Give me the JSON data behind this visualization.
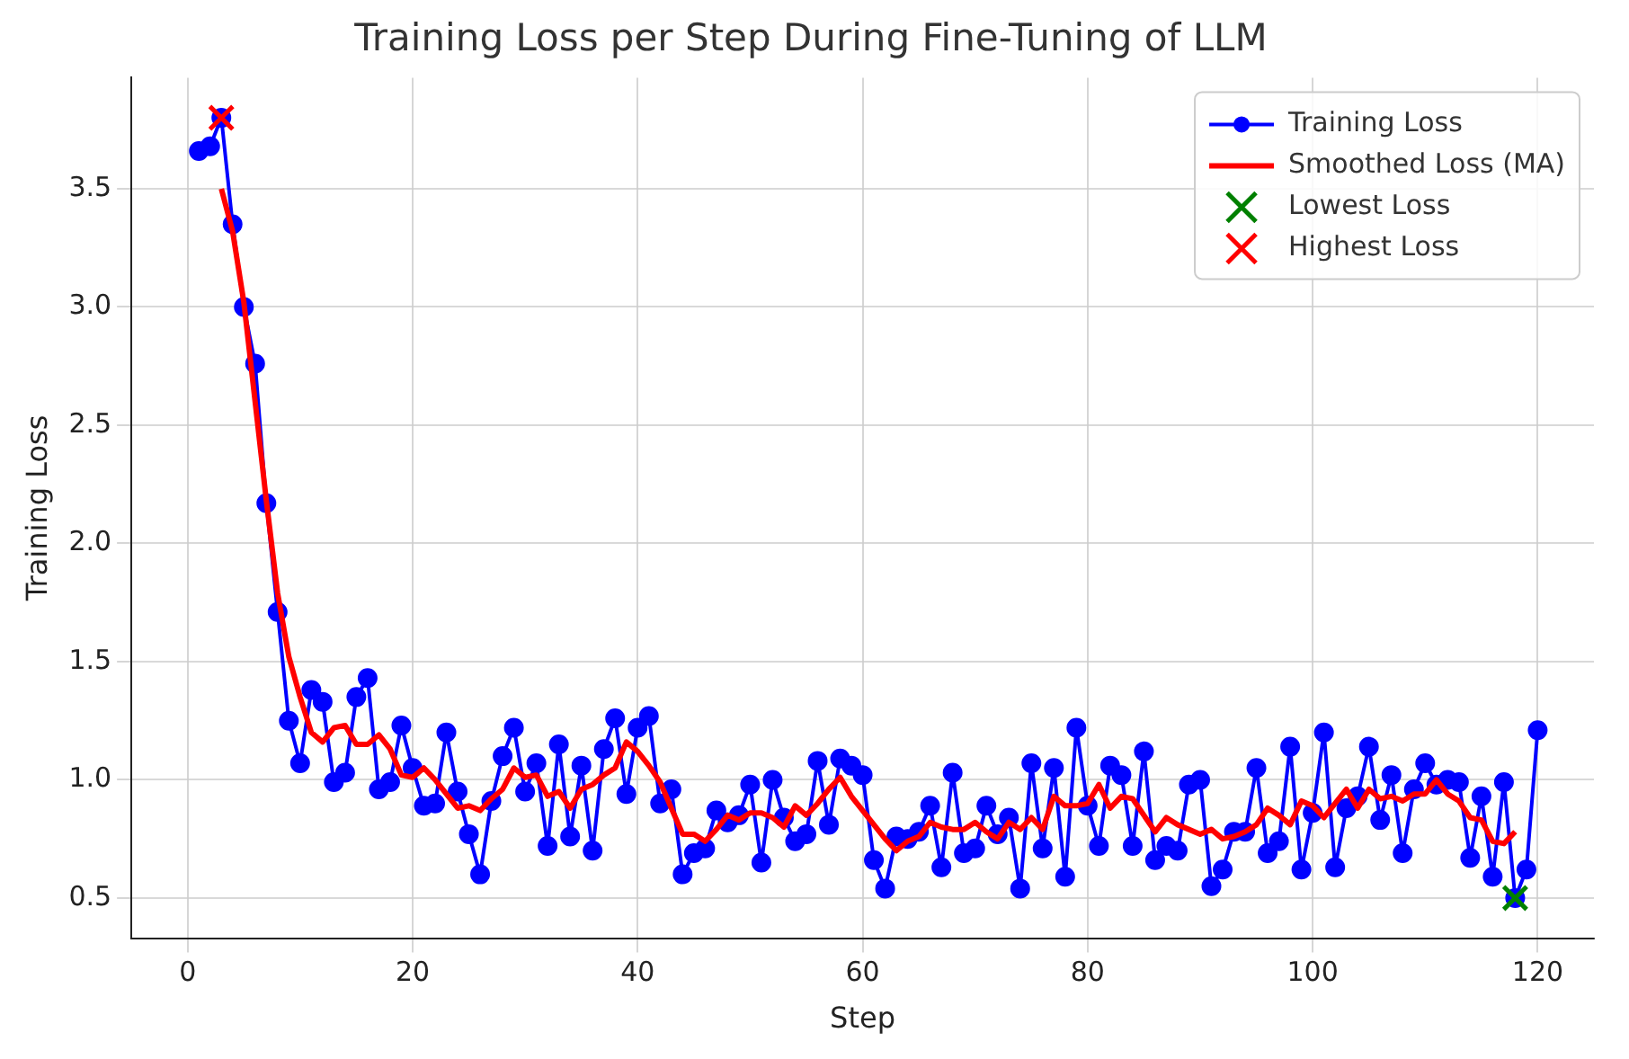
{
  "chart_data": {
    "type": "line",
    "title": "Training Loss per Step During Fine-Tuning of LLM",
    "xlabel": "Step",
    "ylabel": "Training Loss",
    "xlim": [
      -5,
      125
    ],
    "ylim": [
      0.33,
      3.97
    ],
    "xticks": [
      0,
      20,
      40,
      60,
      80,
      100,
      120
    ],
    "yticks": [
      {
        "value": 0.5,
        "label": "0.5"
      },
      {
        "value": 1,
        "label": "1.0"
      },
      {
        "value": 1.5,
        "label": "1.5"
      },
      {
        "value": 2,
        "label": "2.0"
      },
      {
        "value": 2.5,
        "label": "2.5"
      },
      {
        "value": 3,
        "label": "3.0"
      },
      {
        "value": 3.5,
        "label": "3.5"
      }
    ],
    "grid": true,
    "legend": "top right",
    "series": [
      {
        "name": "Training Loss",
        "type": "line",
        "color": "#0000ff",
        "marker": "circle",
        "line_style": "solid",
        "x": [
          1,
          2,
          3,
          4,
          5,
          6,
          7,
          8,
          9,
          10,
          11,
          12,
          13,
          14,
          15,
          16,
          17,
          18,
          19,
          20,
          21,
          22,
          23,
          24,
          25,
          26,
          27,
          28,
          29,
          30,
          31,
          32,
          33,
          34,
          35,
          36,
          37,
          38,
          39,
          40,
          41,
          42,
          43,
          44,
          45,
          46,
          47,
          48,
          49,
          50,
          51,
          52,
          53,
          54,
          55,
          56,
          57,
          58,
          59,
          60,
          61,
          62,
          63,
          64,
          65,
          66,
          67,
          68,
          69,
          70,
          71,
          72,
          73,
          74,
          75,
          76,
          77,
          78,
          79,
          80,
          81,
          82,
          83,
          84,
          85,
          86,
          87,
          88,
          89,
          90,
          91,
          92,
          93,
          94,
          95,
          96,
          97,
          98,
          99,
          100,
          101,
          102,
          103,
          104,
          105,
          106,
          107,
          108,
          109,
          110,
          111,
          112,
          113,
          114,
          115,
          116,
          117,
          118,
          119,
          120
        ],
        "values": [
          3.66,
          3.68,
          3.8,
          3.35,
          3.0,
          2.76,
          2.17,
          1.71,
          1.25,
          1.07,
          1.38,
          1.33,
          0.99,
          1.03,
          1.35,
          1.43,
          0.96,
          0.99,
          1.23,
          1.05,
          0.89,
          0.9,
          1.2,
          0.95,
          0.77,
          0.6,
          0.91,
          1.1,
          1.22,
          0.95,
          1.07,
          0.72,
          1.15,
          0.76,
          1.06,
          0.7,
          1.13,
          1.26,
          0.94,
          1.22,
          1.27,
          0.9,
          0.96,
          0.6,
          0.69,
          0.71,
          0.87,
          0.82,
          0.85,
          0.98,
          0.65,
          1.0,
          0.84,
          0.74,
          0.77,
          1.08,
          0.81,
          1.09,
          1.06,
          1.02,
          0.66,
          0.54,
          0.76,
          0.75,
          0.78,
          0.89,
          0.63,
          1.03,
          0.69,
          0.71,
          0.89,
          0.77,
          0.84,
          0.54,
          1.07,
          0.71,
          1.05,
          0.59,
          1.22,
          0.89,
          0.72,
          1.06,
          1.02,
          0.72,
          1.12,
          0.66,
          0.72,
          0.7,
          0.98,
          1.0,
          0.55,
          0.62,
          0.78,
          0.78,
          1.05,
          0.69,
          0.74,
          1.14,
          0.62,
          0.86,
          1.2,
          0.63,
          0.88,
          0.93,
          1.14,
          0.83,
          1.02,
          0.69,
          0.96,
          1.07,
          0.98,
          1.0,
          0.99,
          0.67,
          0.93,
          0.59,
          0.99,
          0.5,
          0.62,
          1.21
        ]
      },
      {
        "name": "Smoothed Loss (MA)",
        "type": "line",
        "color": "#ff0000",
        "marker": "none",
        "line_style": "solid",
        "x": [
          3,
          4,
          5,
          6,
          7,
          8,
          9,
          10,
          11,
          12,
          13,
          14,
          15,
          16,
          17,
          18,
          19,
          20,
          21,
          22,
          23,
          24,
          25,
          26,
          27,
          28,
          29,
          30,
          31,
          32,
          33,
          34,
          35,
          36,
          37,
          38,
          39,
          40,
          41,
          42,
          43,
          44,
          45,
          46,
          47,
          48,
          49,
          50,
          51,
          52,
          53,
          54,
          55,
          56,
          57,
          58,
          59,
          60,
          61,
          62,
          63,
          64,
          65,
          66,
          67,
          68,
          69,
          70,
          71,
          72,
          73,
          74,
          75,
          76,
          77,
          78,
          79,
          80,
          81,
          82,
          83,
          84,
          85,
          86,
          87,
          88,
          89,
          90,
          91,
          92,
          93,
          94,
          95,
          96,
          97,
          98,
          99,
          100,
          101,
          102,
          103,
          104,
          105,
          106,
          107,
          108,
          109,
          110,
          111,
          112,
          113,
          114,
          115,
          116,
          117,
          118
        ],
        "values": [
          3.5,
          3.32,
          3.02,
          2.6,
          2.18,
          1.79,
          1.52,
          1.35,
          1.2,
          1.16,
          1.22,
          1.23,
          1.15,
          1.15,
          1.19,
          1.13,
          1.02,
          1.01,
          1.05,
          1.0,
          0.94,
          0.88,
          0.89,
          0.87,
          0.92,
          0.96,
          1.05,
          1.01,
          1.02,
          0.93,
          0.95,
          0.88,
          0.96,
          0.98,
          1.02,
          1.05,
          1.16,
          1.12,
          1.06,
          0.99,
          0.88,
          0.77,
          0.77,
          0.74,
          0.79,
          0.85,
          0.83,
          0.86,
          0.86,
          0.84,
          0.8,
          0.89,
          0.85,
          0.9,
          0.96,
          1.01,
          0.93,
          0.87,
          0.81,
          0.75,
          0.7,
          0.74,
          0.76,
          0.82,
          0.8,
          0.79,
          0.79,
          0.82,
          0.78,
          0.75,
          0.82,
          0.79,
          0.84,
          0.79,
          0.93,
          0.89,
          0.89,
          0.9,
          0.98,
          0.88,
          0.93,
          0.92,
          0.85,
          0.78,
          0.84,
          0.81,
          0.79,
          0.77,
          0.79,
          0.75,
          0.76,
          0.78,
          0.81,
          0.88,
          0.85,
          0.81,
          0.91,
          0.89,
          0.84,
          0.9,
          0.96,
          0.88,
          0.96,
          0.92,
          0.93,
          0.91,
          0.94,
          0.94,
          1.0,
          0.94,
          0.91,
          0.84,
          0.83,
          0.74,
          0.73,
          0.78
        ]
      },
      {
        "name": "Lowest Loss",
        "type": "scatter",
        "color": "#008000",
        "marker": "cross",
        "x": [
          118
        ],
        "values": [
          0.5
        ]
      },
      {
        "name": "Highest Loss",
        "type": "scatter",
        "color": "#ff0000",
        "marker": "cross",
        "x": [
          3
        ],
        "values": [
          3.8
        ]
      }
    ]
  }
}
